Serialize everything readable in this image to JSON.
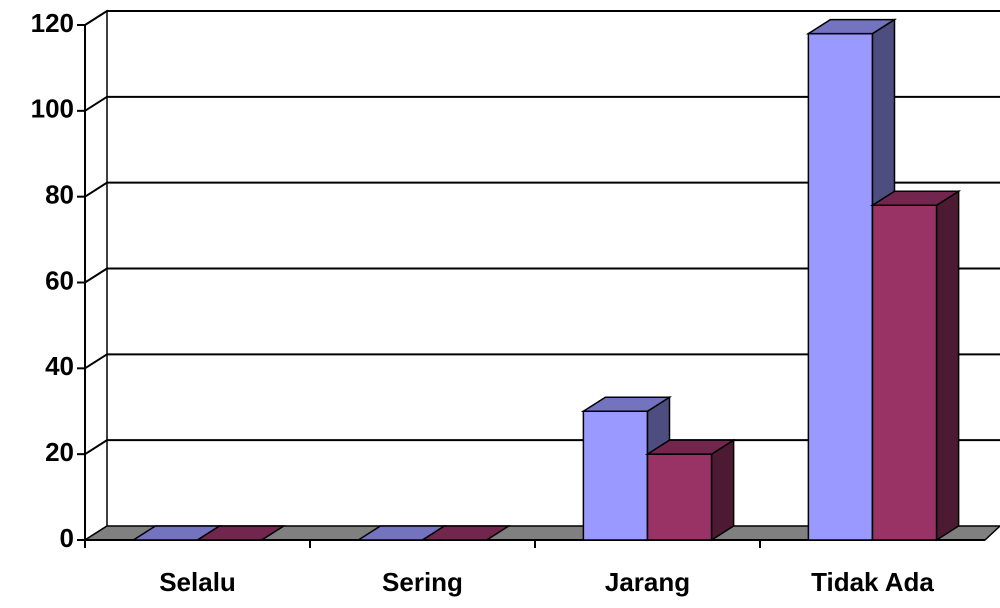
{
  "chart_data": {
    "type": "bar3d",
    "categories": [
      "Selalu",
      "Sering",
      "Jarang",
      "Tidak Ada"
    ],
    "series": [
      {
        "color": "#9999ff",
        "values": [
          0,
          0,
          30,
          118
        ]
      },
      {
        "color": "#993366",
        "values": [
          0,
          0,
          20,
          78
        ]
      }
    ],
    "ylim": [
      0,
      120
    ],
    "yticks": [
      0,
      20,
      40,
      60,
      80,
      100,
      120
    ],
    "grid": true
  }
}
